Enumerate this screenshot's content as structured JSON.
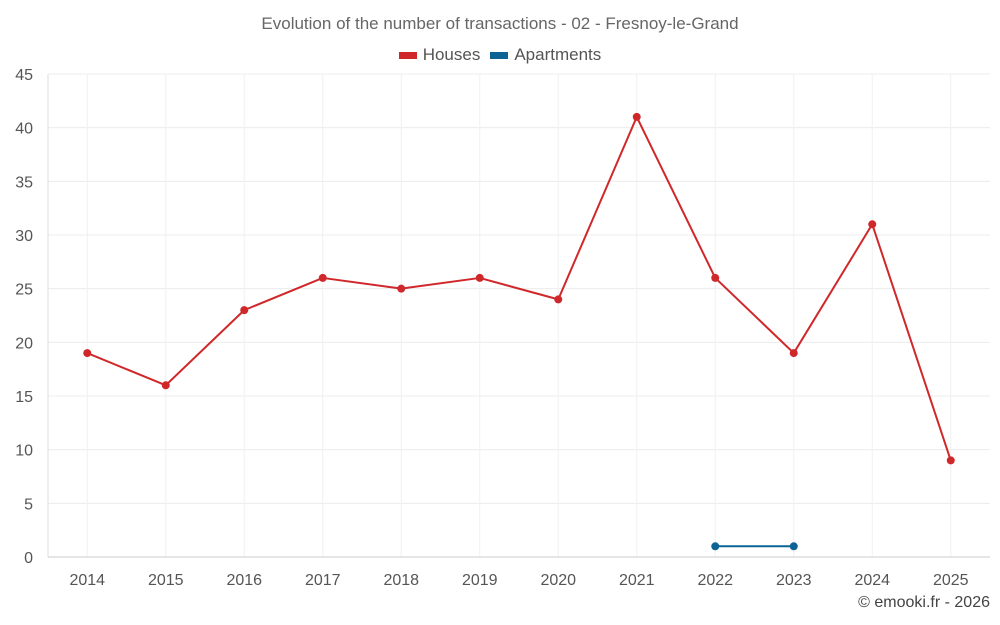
{
  "chart_data": {
    "type": "line",
    "title": "Evolution of the number of transactions - 02 - Fresnoy-le-Grand",
    "categories": [
      "2014",
      "2015",
      "2016",
      "2017",
      "2018",
      "2019",
      "2020",
      "2021",
      "2022",
      "2023",
      "2024",
      "2025"
    ],
    "series": [
      {
        "name": "Houses",
        "color": "#d0282a",
        "values": [
          19,
          16,
          23,
          26,
          25,
          26,
          24,
          41,
          26,
          19,
          31,
          9
        ]
      },
      {
        "name": "Apartments",
        "color": "#0e6395",
        "values": [
          null,
          null,
          null,
          null,
          null,
          null,
          null,
          null,
          1,
          1,
          null,
          null
        ]
      }
    ],
    "ylim": [
      0,
      45
    ],
    "yticks": [
      0,
      5,
      10,
      15,
      20,
      25,
      30,
      35,
      40,
      45
    ],
    "grid": true,
    "legend_position": "top-center"
  },
  "credit": "© emooki.fr - 2026"
}
